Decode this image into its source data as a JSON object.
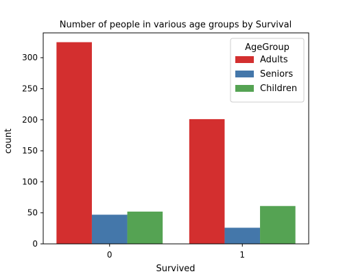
{
  "chart_data": {
    "type": "bar",
    "title": "Number of people in various age groups by Survival",
    "xlabel": "Survived",
    "ylabel": "count",
    "categories": [
      "0",
      "1"
    ],
    "ylim": [
      0,
      340
    ],
    "yticks": [
      0,
      50,
      100,
      150,
      200,
      250,
      300
    ],
    "grid": false,
    "legend": {
      "title": "AgeGroup",
      "placement": "top-right"
    },
    "series": [
      {
        "name": "Adults",
        "color": "#d32f2f",
        "values": [
          325,
          201
        ]
      },
      {
        "name": "Seniors",
        "color": "#4477aa",
        "values": [
          47,
          26
        ]
      },
      {
        "name": "Children",
        "color": "#55a353",
        "values": [
          52,
          61
        ]
      }
    ]
  }
}
